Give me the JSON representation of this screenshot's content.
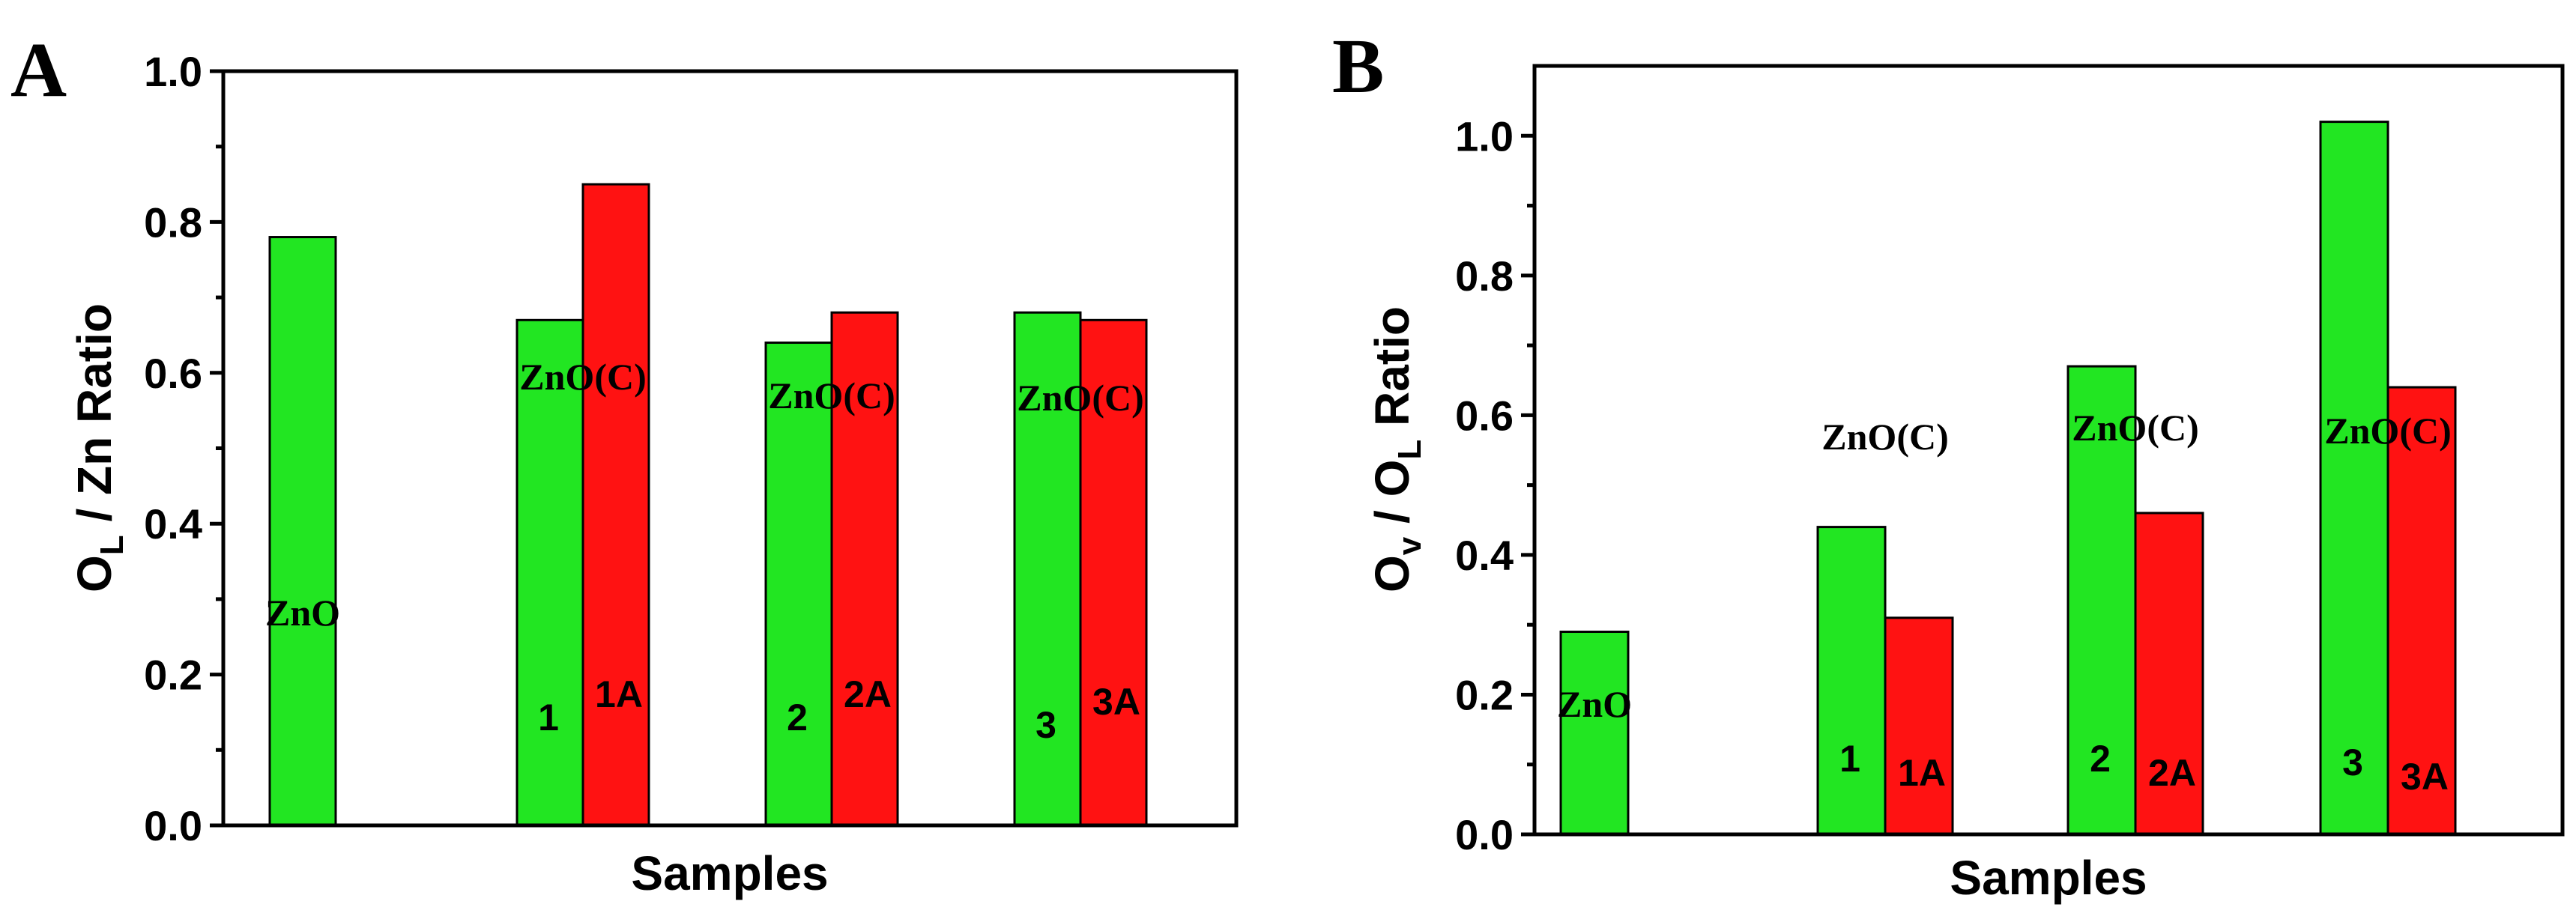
{
  "chart_data": [
    {
      "type": "bar",
      "panel_label": "A",
      "title": "",
      "xlabel": "Samples",
      "ylabel": {
        "prefix": "O",
        "sub": "L",
        "suffix": " / Zn Ratio"
      },
      "ylim": [
        0,
        1.0
      ],
      "yticks": [
        "0.0",
        "0.2",
        "0.4",
        "0.6",
        "0.8",
        "1.0"
      ],
      "colors": {
        "as_prepared": "#22e622",
        "annealed": "#ff1212"
      },
      "groups": [
        {
          "label": "ZnO",
          "bars": [
            {
              "label": "",
              "series": "as_prepared",
              "value": 0.78
            }
          ]
        },
        {
          "label": "ZnO(C)",
          "bars": [
            {
              "label": "1",
              "series": "as_prepared",
              "value": 0.67
            },
            {
              "label": "1A",
              "series": "annealed",
              "value": 0.85
            }
          ]
        },
        {
          "label": "ZnO(C)",
          "bars": [
            {
              "label": "2",
              "series": "as_prepared",
              "value": 0.64
            },
            {
              "label": "2A",
              "series": "annealed",
              "value": 0.68
            }
          ]
        },
        {
          "label": "ZnO(C)",
          "bars": [
            {
              "label": "3",
              "series": "as_prepared",
              "value": 0.68
            },
            {
              "label": "3A",
              "series": "annealed",
              "value": 0.67
            }
          ]
        }
      ]
    },
    {
      "type": "bar",
      "panel_label": "B",
      "title": "",
      "xlabel": "Samples",
      "ylabel": {
        "prefix": "O",
        "sub": "v",
        "mid": " / O",
        "sub2": "L",
        "suffix": " Ratio"
      },
      "ylim": [
        0,
        1.1
      ],
      "yticks": [
        "0.0",
        "0.2",
        "0.4",
        "0.6",
        "0.8",
        "1.0"
      ],
      "colors": {
        "as_prepared": "#22e622",
        "annealed": "#ff1212"
      },
      "groups": [
        {
          "label": "ZnO",
          "bars": [
            {
              "label": "",
              "series": "as_prepared",
              "value": 0.29
            }
          ]
        },
        {
          "label": "ZnO(C)",
          "bars": [
            {
              "label": "1",
              "series": "as_prepared",
              "value": 0.44
            },
            {
              "label": "1A",
              "series": "annealed",
              "value": 0.31
            }
          ]
        },
        {
          "label": "ZnO(C)",
          "bars": [
            {
              "label": "2",
              "series": "as_prepared",
              "value": 0.67
            },
            {
              "label": "2A",
              "series": "annealed",
              "value": 0.46
            }
          ]
        },
        {
          "label": "ZnO(C)",
          "bars": [
            {
              "label": "3",
              "series": "as_prepared",
              "value": 1.02
            },
            {
              "label": "3A",
              "series": "annealed",
              "value": 0.64
            }
          ]
        }
      ]
    }
  ]
}
